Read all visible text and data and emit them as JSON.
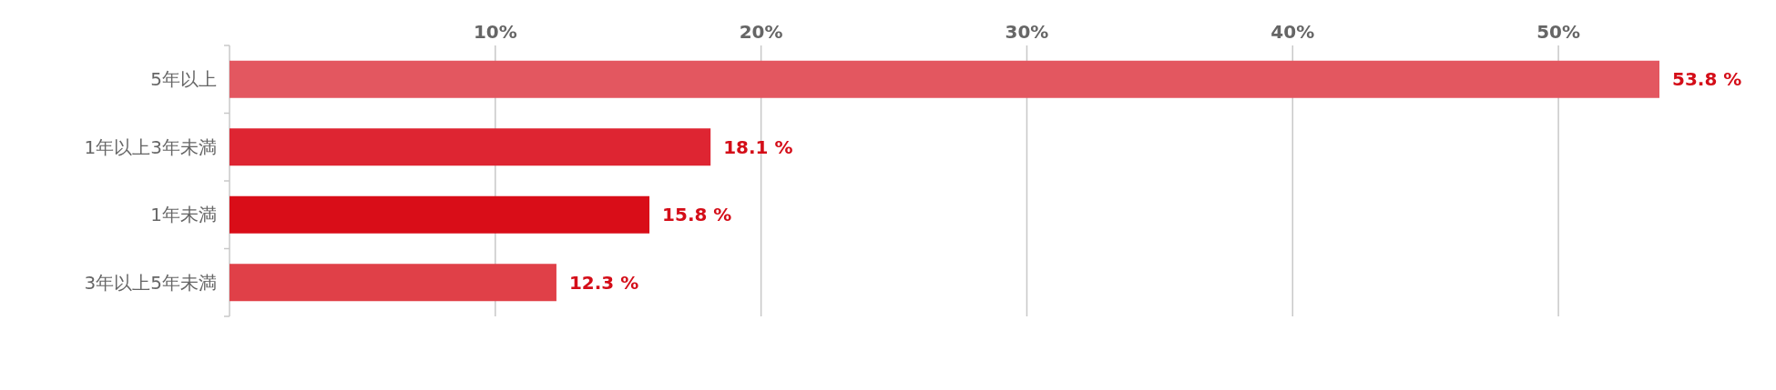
{
  "chart_data": {
    "type": "bar",
    "orientation": "horizontal",
    "categories": [
      "5年以上",
      "1年以上3年未満",
      "1年未満",
      "3年以上5年未満"
    ],
    "values": [
      53.8,
      18.1,
      15.8,
      12.3
    ],
    "colors": [
      "#e35760",
      "#de2532",
      "#d90d18",
      "#e04048"
    ],
    "value_labels": [
      "53.8 %",
      "18.1 %",
      "15.8 %",
      "12.3 %"
    ],
    "xticks": [
      {
        "value": 10,
        "label": "10%"
      },
      {
        "value": 20,
        "label": "20%"
      },
      {
        "value": 30,
        "label": "30%"
      },
      {
        "value": 40,
        "label": "40%"
      },
      {
        "value": 50,
        "label": "50%"
      }
    ],
    "xlim": [
      0,
      53.8
    ],
    "grid": "x"
  }
}
